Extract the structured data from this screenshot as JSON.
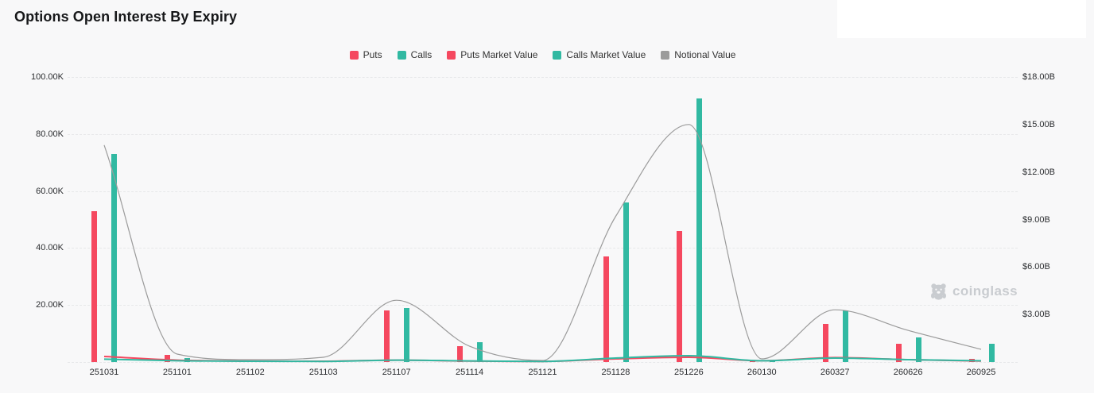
{
  "header": {
    "title": "Options Open Interest By Expiry"
  },
  "legend": [
    {
      "label": "Puts",
      "color": "#f5485f"
    },
    {
      "label": "Calls",
      "color": "#31b9a2"
    },
    {
      "label": "Puts Market Value",
      "color": "#f5485f"
    },
    {
      "label": "Calls Market Value",
      "color": "#31b9a2"
    },
    {
      "label": "Notional Value",
      "color": "#9b9b9b"
    }
  ],
  "watermark": {
    "label": "coinglass",
    "icon": "bear-logo-icon"
  },
  "colors": {
    "background": "#f8f8f9",
    "gridline": "#e7e8ea",
    "axis_text": "#2b2d30",
    "puts": "#f5485f",
    "calls": "#31b9a2",
    "notional": "#9b9b9b",
    "watermark": "#c9ccd0"
  },
  "chart_data": {
    "type": "bar",
    "title": "Options Open Interest By Expiry",
    "categories": [
      "251031",
      "251101",
      "251102",
      "251103",
      "251107",
      "251114",
      "251121",
      "251128",
      "251226",
      "260130",
      "260327",
      "260626",
      "260925"
    ],
    "series": [
      {
        "name": "Puts",
        "type": "bar",
        "axis": "left",
        "unit": "K contracts",
        "color": "#f5485f",
        "values": [
          53,
          2.5,
          0.3,
          0.2,
          18,
          5.5,
          0.2,
          37,
          46,
          0.3,
          13.5,
          6.5,
          1
        ]
      },
      {
        "name": "Calls",
        "type": "bar",
        "axis": "left",
        "unit": "K contracts",
        "color": "#31b9a2",
        "values": [
          73,
          1.5,
          0.3,
          0.2,
          19,
          7,
          0.3,
          56,
          92.5,
          0.4,
          18,
          8.5,
          6.5
        ]
      },
      {
        "name": "Puts Market Value",
        "type": "line",
        "axis": "right",
        "unit": "$B",
        "color": "#f5485f",
        "values": [
          0.35,
          0.12,
          0.06,
          0.05,
          0.12,
          0.06,
          0.04,
          0.2,
          0.3,
          0.08,
          0.28,
          0.15,
          0.06
        ]
      },
      {
        "name": "Calls Market Value",
        "type": "line",
        "axis": "right",
        "unit": "$B",
        "color": "#31b9a2",
        "values": [
          0.18,
          0.08,
          0.05,
          0.04,
          0.12,
          0.07,
          0.04,
          0.25,
          0.4,
          0.08,
          0.25,
          0.15,
          0.08
        ]
      },
      {
        "name": "Notional Value",
        "type": "line",
        "axis": "right",
        "unit": "$B",
        "color": "#9b9b9b",
        "values": [
          13.7,
          0.5,
          0.15,
          0.3,
          3.9,
          1.0,
          0.1,
          9.2,
          15.0,
          0.2,
          3.3,
          2.0,
          0.8
        ]
      }
    ],
    "left_axis": {
      "tick_labels": [
        "20.00K",
        "40.00K",
        "60.00K",
        "80.00K",
        "100.00K"
      ],
      "tick_values": [
        20,
        40,
        60,
        80,
        100
      ],
      "min": 0,
      "max": 100
    },
    "right_axis": {
      "tick_labels": [
        "$3.00B",
        "$6.00B",
        "$9.00B",
        "$12.00B",
        "$15.00B",
        "$18.00B"
      ],
      "tick_values": [
        3,
        6,
        9,
        12,
        15,
        18
      ],
      "min": 0,
      "max": 18
    },
    "grid": "horizontal-dashed",
    "legend_position": "top-center",
    "smooth_lines": true
  }
}
